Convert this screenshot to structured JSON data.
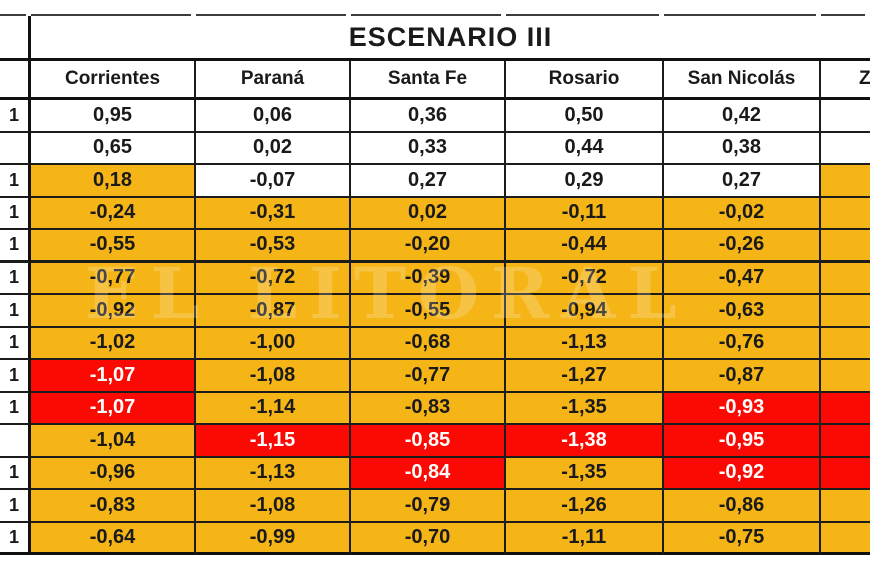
{
  "title": "ESCENARIO III",
  "watermark": "EL LITORAL",
  "colors": {
    "orange": "#F6B517",
    "red": "#FB0A04",
    "text_dark": "#1a1a1a",
    "text_on_red": "#ffffff",
    "border": "#1c1c1c"
  },
  "table": {
    "columns": [
      "Corrientes",
      "Paraná",
      "Santa Fe",
      "Rosario",
      "San Nicolás",
      "Z"
    ],
    "last_column_clipped": true,
    "rows": [
      {
        "label": "1",
        "cells": [
          {
            "v": "0,95",
            "bg": "w"
          },
          {
            "v": "0,06",
            "bg": "w"
          },
          {
            "v": "0,36",
            "bg": "w"
          },
          {
            "v": "0,50",
            "bg": "w"
          },
          {
            "v": "0,42",
            "bg": "w"
          }
        ],
        "last_bg": "w"
      },
      {
        "label": "",
        "cells": [
          {
            "v": "0,65",
            "bg": "w"
          },
          {
            "v": "0,02",
            "bg": "w"
          },
          {
            "v": "0,33",
            "bg": "w"
          },
          {
            "v": "0,44",
            "bg": "w"
          },
          {
            "v": "0,38",
            "bg": "w"
          }
        ],
        "last_bg": "w"
      },
      {
        "label": "1",
        "cells": [
          {
            "v": "0,18",
            "bg": "o"
          },
          {
            "v": "-0,07",
            "bg": "w"
          },
          {
            "v": "0,27",
            "bg": "w"
          },
          {
            "v": "0,29",
            "bg": "w"
          },
          {
            "v": "0,27",
            "bg": "w"
          }
        ],
        "last_bg": "o"
      },
      {
        "label": "1",
        "cells": [
          {
            "v": "-0,24",
            "bg": "o"
          },
          {
            "v": "-0,31",
            "bg": "o"
          },
          {
            "v": "0,02",
            "bg": "o"
          },
          {
            "v": "-0,11",
            "bg": "o"
          },
          {
            "v": "-0,02",
            "bg": "o"
          }
        ],
        "last_bg": "o"
      },
      {
        "label": "1",
        "cells": [
          {
            "v": "-0,55",
            "bg": "o"
          },
          {
            "v": "-0,53",
            "bg": "o"
          },
          {
            "v": "-0,20",
            "bg": "o"
          },
          {
            "v": "-0,44",
            "bg": "o"
          },
          {
            "v": "-0,26",
            "bg": "o"
          }
        ],
        "last_bg": "o",
        "thick_bottom": true
      },
      {
        "label": "1",
        "cells": [
          {
            "v": "-0,77",
            "bg": "o"
          },
          {
            "v": "-0,72",
            "bg": "o"
          },
          {
            "v": "-0,39",
            "bg": "o"
          },
          {
            "v": "-0,72",
            "bg": "o"
          },
          {
            "v": "-0,47",
            "bg": "o"
          }
        ],
        "last_bg": "o"
      },
      {
        "label": "1",
        "cells": [
          {
            "v": "-0,92",
            "bg": "o"
          },
          {
            "v": "-0,87",
            "bg": "o"
          },
          {
            "v": "-0,55",
            "bg": "o"
          },
          {
            "v": "-0,94",
            "bg": "o"
          },
          {
            "v": "-0,63",
            "bg": "o"
          }
        ],
        "last_bg": "o"
      },
      {
        "label": "1",
        "cells": [
          {
            "v": "-1,02",
            "bg": "o"
          },
          {
            "v": "-1,00",
            "bg": "o"
          },
          {
            "v": "-0,68",
            "bg": "o"
          },
          {
            "v": "-1,13",
            "bg": "o"
          },
          {
            "v": "-0,76",
            "bg": "o"
          }
        ],
        "last_bg": "o"
      },
      {
        "label": "1",
        "cells": [
          {
            "v": "-1,07",
            "bg": "r"
          },
          {
            "v": "-1,08",
            "bg": "o"
          },
          {
            "v": "-0,77",
            "bg": "o"
          },
          {
            "v": "-1,27",
            "bg": "o"
          },
          {
            "v": "-0,87",
            "bg": "o"
          }
        ],
        "last_bg": "o"
      },
      {
        "label": "1",
        "cells": [
          {
            "v": "-1,07",
            "bg": "r"
          },
          {
            "v": "-1,14",
            "bg": "o"
          },
          {
            "v": "-0,83",
            "bg": "o"
          },
          {
            "v": "-1,35",
            "bg": "o"
          },
          {
            "v": "-0,93",
            "bg": "r"
          }
        ],
        "last_bg": "r"
      },
      {
        "label": "",
        "cells": [
          {
            "v": "-1,04",
            "bg": "o"
          },
          {
            "v": "-1,15",
            "bg": "r"
          },
          {
            "v": "-0,85",
            "bg": "r"
          },
          {
            "v": "-1,38",
            "bg": "r"
          },
          {
            "v": "-0,95",
            "bg": "r"
          }
        ],
        "last_bg": "r"
      },
      {
        "label": "1",
        "cells": [
          {
            "v": "-0,96",
            "bg": "o"
          },
          {
            "v": "-1,13",
            "bg": "o"
          },
          {
            "v": "-0,84",
            "bg": "r"
          },
          {
            "v": "-1,35",
            "bg": "o"
          },
          {
            "v": "-0,92",
            "bg": "r"
          }
        ],
        "last_bg": "r"
      },
      {
        "label": "1",
        "cells": [
          {
            "v": "-0,83",
            "bg": "o"
          },
          {
            "v": "-1,08",
            "bg": "o"
          },
          {
            "v": "-0,79",
            "bg": "o"
          },
          {
            "v": "-1,26",
            "bg": "o"
          },
          {
            "v": "-0,86",
            "bg": "o"
          }
        ],
        "last_bg": "o"
      },
      {
        "label": "1",
        "cells": [
          {
            "v": "-0,64",
            "bg": "o"
          },
          {
            "v": "-0,99",
            "bg": "o"
          },
          {
            "v": "-0,70",
            "bg": "o"
          },
          {
            "v": "-1,11",
            "bg": "o"
          },
          {
            "v": "-0,75",
            "bg": "o"
          }
        ],
        "last_bg": "o"
      }
    ]
  },
  "chart_data": {
    "type": "table",
    "title": "ESCENARIO III",
    "columns": [
      "Corrientes",
      "Paraná",
      "Santa Fe",
      "Rosario",
      "San Nicolás"
    ],
    "values": [
      [
        0.95,
        0.06,
        0.36,
        0.5,
        0.42
      ],
      [
        0.65,
        0.02,
        0.33,
        0.44,
        0.38
      ],
      [
        0.18,
        -0.07,
        0.27,
        0.29,
        0.27
      ],
      [
        -0.24,
        -0.31,
        0.02,
        -0.11,
        -0.02
      ],
      [
        -0.55,
        -0.53,
        -0.2,
        -0.44,
        -0.26
      ],
      [
        -0.77,
        -0.72,
        -0.39,
        -0.72,
        -0.47
      ],
      [
        -0.92,
        -0.87,
        -0.55,
        -0.94,
        -0.63
      ],
      [
        -1.02,
        -1.0,
        -0.68,
        -1.13,
        -0.76
      ],
      [
        -1.07,
        -1.08,
        -0.77,
        -1.27,
        -0.87
      ],
      [
        -1.07,
        -1.14,
        -0.83,
        -1.35,
        -0.93
      ],
      [
        -1.04,
        -1.15,
        -0.85,
        -1.38,
        -0.95
      ],
      [
        -0.96,
        -1.13,
        -0.84,
        -1.35,
        -0.92
      ],
      [
        -0.83,
        -1.08,
        -0.79,
        -1.26,
        -0.86
      ],
      [
        -0.64,
        -0.99,
        -0.7,
        -1.11,
        -0.75
      ]
    ],
    "highlight_orange_hex": "#F6B517",
    "highlight_red_hex": "#FB0A04"
  }
}
